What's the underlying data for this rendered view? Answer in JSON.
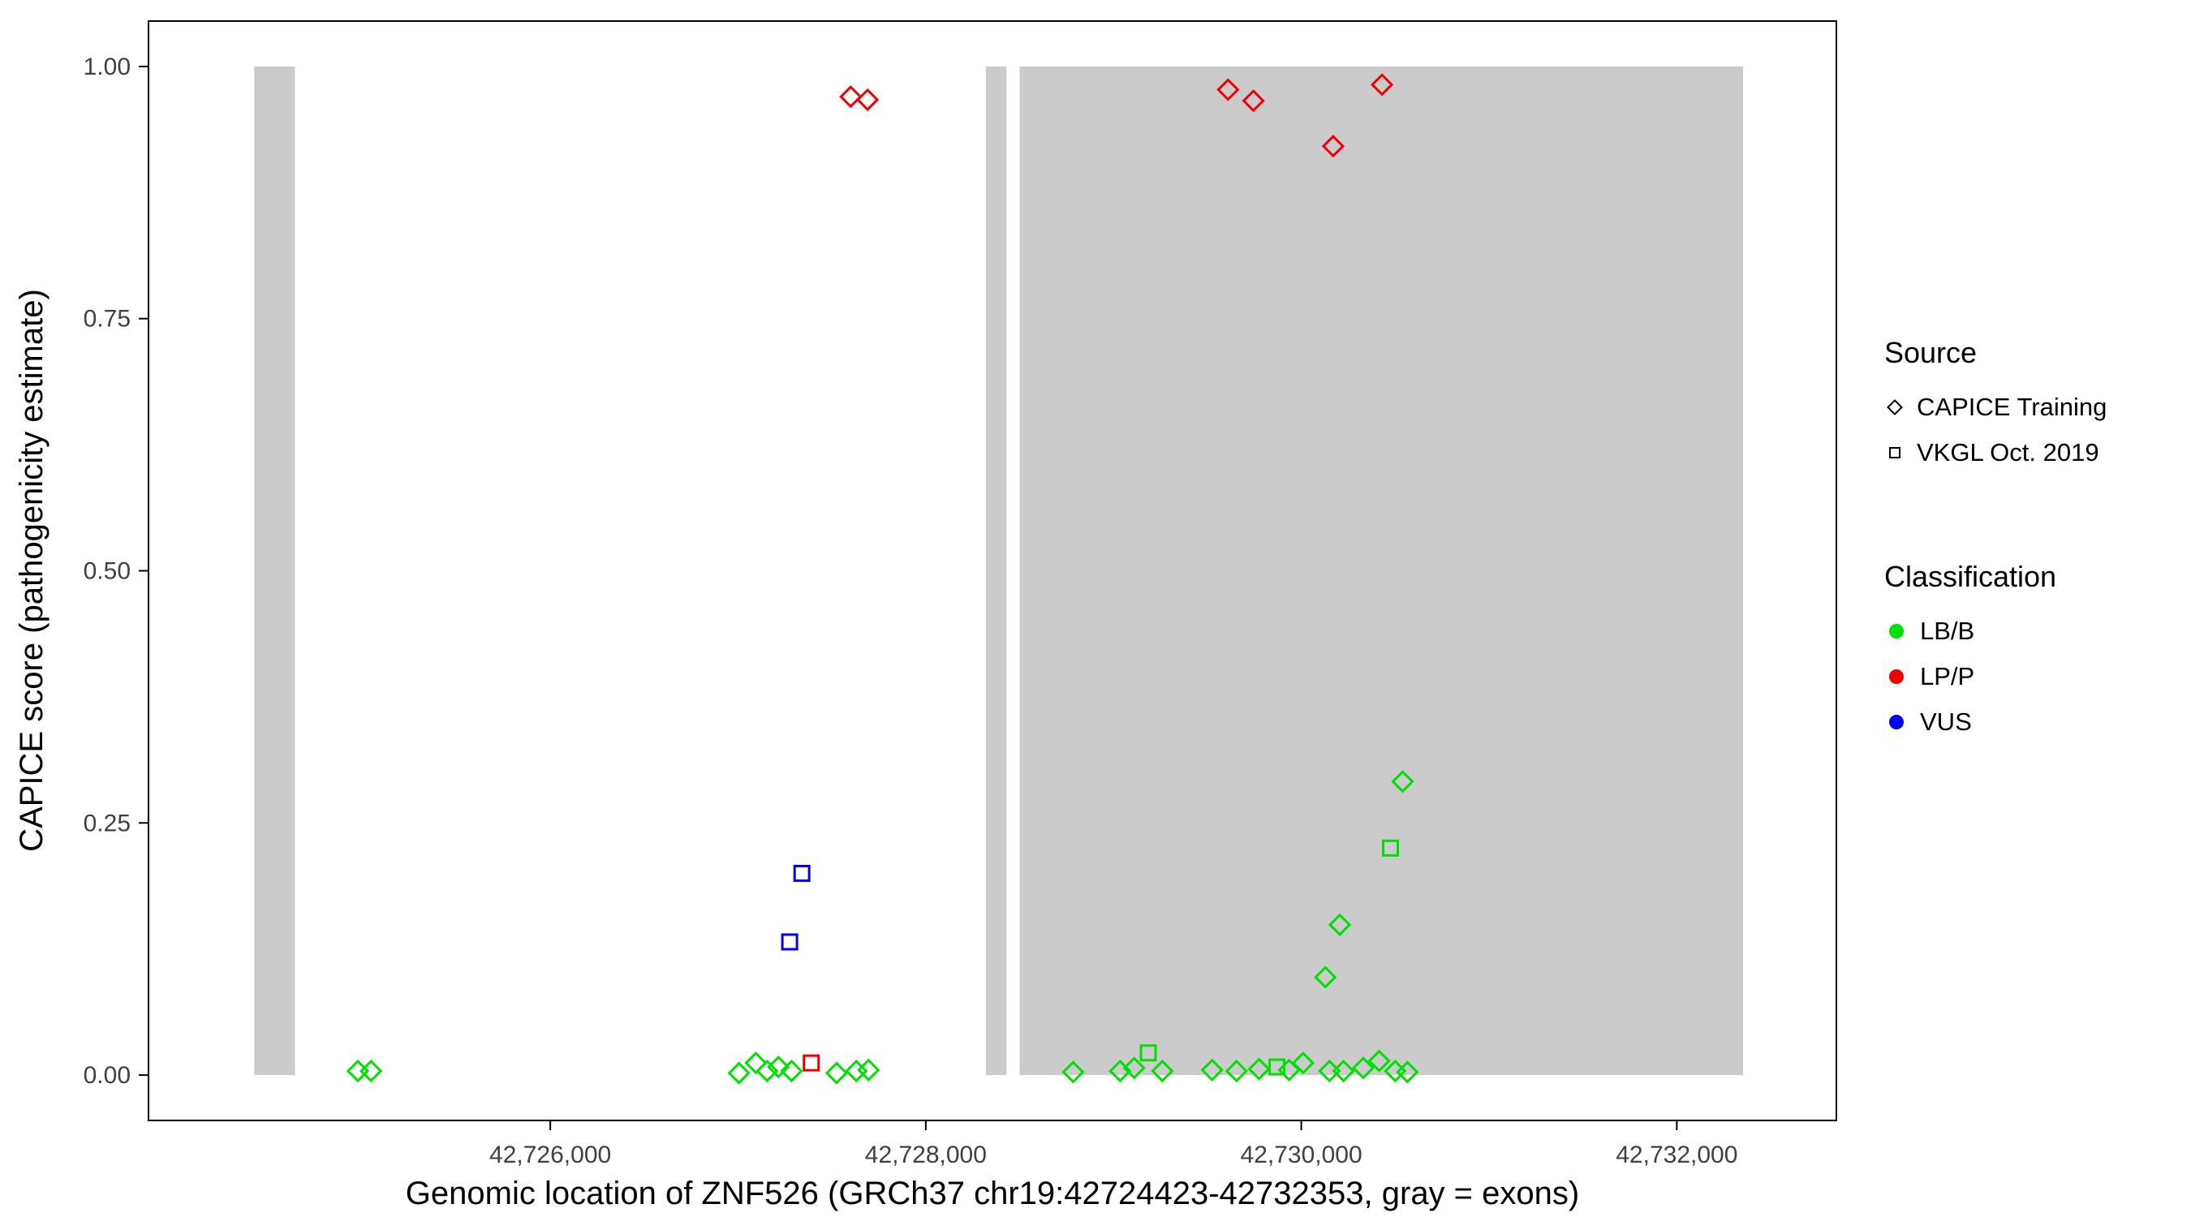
{
  "chart_data": {
    "type": "scatter",
    "title": "",
    "xlabel": "Genomic location of ZNF526 (GRCh37 chr19:42724423-42732353, gray = exons)",
    "ylabel": "CAPICE score (pathogenicity estimate)",
    "xlim": [
      42723860,
      42732850
    ],
    "ylim": [
      -0.045,
      1.045
    ],
    "grid": "off",
    "x_ticks": [
      {
        "value": 42726000,
        "label": "42,726,000"
      },
      {
        "value": 42728000,
        "label": "42,728,000"
      },
      {
        "value": 42730000,
        "label": "42,730,000"
      },
      {
        "value": 42732000,
        "label": "42,732,000"
      }
    ],
    "y_ticks": [
      {
        "value": 0.0,
        "label": "0.00"
      },
      {
        "value": 0.25,
        "label": "0.25"
      },
      {
        "value": 0.5,
        "label": "0.50"
      },
      {
        "value": 0.75,
        "label": "0.75"
      },
      {
        "value": 1.0,
        "label": "1.00"
      }
    ],
    "exon_color": "#cbcbcb",
    "exons": [
      {
        "start": 42724423,
        "end": 42724640
      },
      {
        "start": 42728320,
        "end": 42728430
      },
      {
        "start": 42728500,
        "end": 42732353
      }
    ],
    "shapes": {
      "CAPICE Training": "diamond",
      "VKGL Oct. 2019": "square"
    },
    "classification_colors": {
      "LB/B": "#00e000",
      "LP/P": "#ee0000",
      "VUS": "#0000ee"
    },
    "points": [
      {
        "x": 42727600,
        "y": 0.97,
        "source": "CAPICE Training",
        "classification": "LP/P"
      },
      {
        "x": 42727690,
        "y": 0.967,
        "source": "CAPICE Training",
        "classification": "LP/P"
      },
      {
        "x": 42729610,
        "y": 0.977,
        "source": "CAPICE Training",
        "classification": "LP/P"
      },
      {
        "x": 42729745,
        "y": 0.966,
        "source": "CAPICE Training",
        "classification": "LP/P"
      },
      {
        "x": 42730170,
        "y": 0.921,
        "source": "CAPICE Training",
        "classification": "LP/P"
      },
      {
        "x": 42730430,
        "y": 0.982,
        "source": "CAPICE Training",
        "classification": "LP/P"
      },
      {
        "x": 42727390,
        "y": 0.012,
        "source": "VKGL Oct. 2019",
        "classification": "LP/P"
      },
      {
        "x": 42727275,
        "y": 0.132,
        "source": "VKGL Oct. 2019",
        "classification": "VUS"
      },
      {
        "x": 42727340,
        "y": 0.2,
        "source": "VKGL Oct. 2019",
        "classification": "VUS"
      },
      {
        "x": 42729185,
        "y": 0.022,
        "source": "VKGL Oct. 2019",
        "classification": "LB/B"
      },
      {
        "x": 42729870,
        "y": 0.008,
        "source": "VKGL Oct. 2019",
        "classification": "LB/B"
      },
      {
        "x": 42730475,
        "y": 0.225,
        "source": "VKGL Oct. 2019",
        "classification": "LB/B"
      },
      {
        "x": 42724975,
        "y": 0.004,
        "source": "CAPICE Training",
        "classification": "LB/B"
      },
      {
        "x": 42725045,
        "y": 0.004,
        "source": "CAPICE Training",
        "classification": "LB/B"
      },
      {
        "x": 42727005,
        "y": 0.002,
        "source": "CAPICE Training",
        "classification": "LB/B"
      },
      {
        "x": 42727095,
        "y": 0.012,
        "source": "CAPICE Training",
        "classification": "LB/B"
      },
      {
        "x": 42727155,
        "y": 0.004,
        "source": "CAPICE Training",
        "classification": "LB/B"
      },
      {
        "x": 42727215,
        "y": 0.008,
        "source": "CAPICE Training",
        "classification": "LB/B"
      },
      {
        "x": 42727285,
        "y": 0.004,
        "source": "CAPICE Training",
        "classification": "LB/B"
      },
      {
        "x": 42727525,
        "y": 0.002,
        "source": "CAPICE Training",
        "classification": "LB/B"
      },
      {
        "x": 42727630,
        "y": 0.004,
        "source": "CAPICE Training",
        "classification": "LB/B"
      },
      {
        "x": 42727695,
        "y": 0.005,
        "source": "CAPICE Training",
        "classification": "LB/B"
      },
      {
        "x": 42728785,
        "y": 0.003,
        "source": "CAPICE Training",
        "classification": "LB/B"
      },
      {
        "x": 42729035,
        "y": 0.004,
        "source": "CAPICE Training",
        "classification": "LB/B"
      },
      {
        "x": 42729110,
        "y": 0.007,
        "source": "CAPICE Training",
        "classification": "LB/B"
      },
      {
        "x": 42729260,
        "y": 0.004,
        "source": "CAPICE Training",
        "classification": "LB/B"
      },
      {
        "x": 42729525,
        "y": 0.005,
        "source": "CAPICE Training",
        "classification": "LB/B"
      },
      {
        "x": 42729655,
        "y": 0.004,
        "source": "CAPICE Training",
        "classification": "LB/B"
      },
      {
        "x": 42729775,
        "y": 0.006,
        "source": "CAPICE Training",
        "classification": "LB/B"
      },
      {
        "x": 42729935,
        "y": 0.005,
        "source": "CAPICE Training",
        "classification": "LB/B"
      },
      {
        "x": 42730010,
        "y": 0.012,
        "source": "CAPICE Training",
        "classification": "LB/B"
      },
      {
        "x": 42730128,
        "y": 0.097,
        "source": "CAPICE Training",
        "classification": "LB/B"
      },
      {
        "x": 42730150,
        "y": 0.004,
        "source": "CAPICE Training",
        "classification": "LB/B"
      },
      {
        "x": 42730205,
        "y": 0.149,
        "source": "CAPICE Training",
        "classification": "LB/B"
      },
      {
        "x": 42730225,
        "y": 0.004,
        "source": "CAPICE Training",
        "classification": "LB/B"
      },
      {
        "x": 42730330,
        "y": 0.007,
        "source": "CAPICE Training",
        "classification": "LB/B"
      },
      {
        "x": 42730415,
        "y": 0.014,
        "source": "CAPICE Training",
        "classification": "LB/B"
      },
      {
        "x": 42730500,
        "y": 0.004,
        "source": "CAPICE Training",
        "classification": "LB/B"
      },
      {
        "x": 42730540,
        "y": 0.291,
        "source": "CAPICE Training",
        "classification": "LB/B"
      },
      {
        "x": 42730565,
        "y": 0.003,
        "source": "CAPICE Training",
        "classification": "LB/B"
      }
    ]
  },
  "legend": {
    "source_title": "Source",
    "source_items": [
      {
        "label": "CAPICE Training",
        "shape": "diamond"
      },
      {
        "label": "VKGL Oct. 2019",
        "shape": "square"
      }
    ],
    "classification_title": "Classification",
    "classification_items": [
      {
        "label": "LB/B",
        "color": "#00e000"
      },
      {
        "label": "LP/P",
        "color": "#ee0000"
      },
      {
        "label": "VUS",
        "color": "#0000ee"
      }
    ]
  }
}
